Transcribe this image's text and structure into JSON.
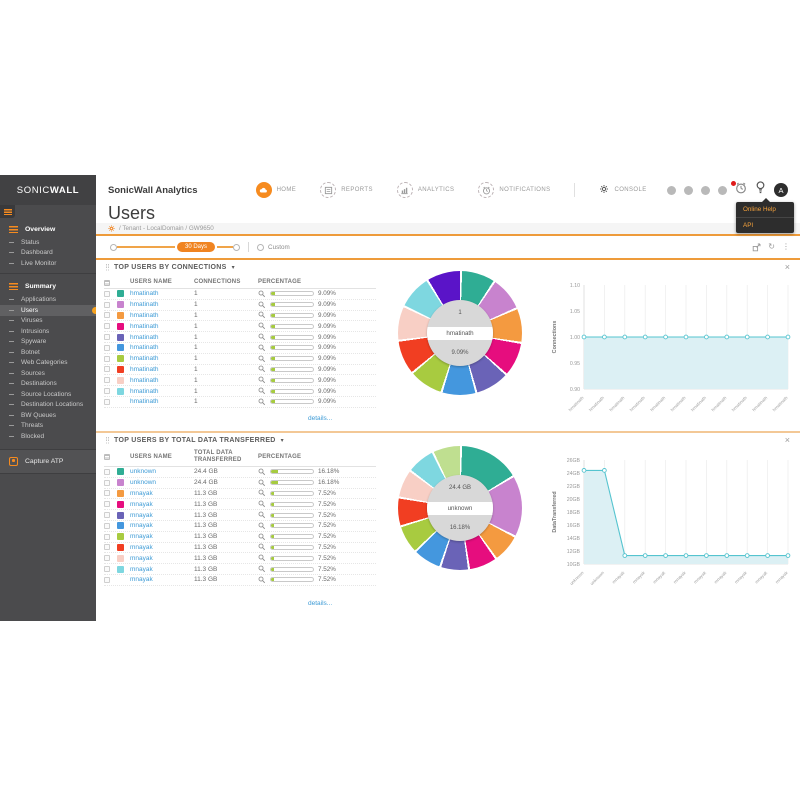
{
  "brand": {
    "logo_left": "SONIC",
    "logo_right": "WALL"
  },
  "topnav": {
    "app_title": "SonicWall Analytics",
    "items": [
      {
        "label": "HOME",
        "icon": "cloud-icon",
        "active": true
      },
      {
        "label": "REPORTS",
        "icon": "reports-icon",
        "active": false
      },
      {
        "label": "ANALYTICS",
        "icon": "analytics-icon",
        "active": false
      },
      {
        "label": "NOTIFICATIONS",
        "icon": "alarm-icon",
        "active": false
      },
      {
        "label": "CONSOLE",
        "icon": "gear-icon",
        "active": false,
        "no_circle": true
      }
    ],
    "avatar": "A",
    "help_menu": [
      "Online Help",
      "API"
    ]
  },
  "page": {
    "title": "Users",
    "breadcrumb": "/ Tenant - LocalDomain / GW9650"
  },
  "timebar": {
    "range": "30 Days",
    "custom": "Custom"
  },
  "sidebar": {
    "groups": [
      {
        "label": "Overview",
        "items": [
          "Status",
          "Dashboard",
          "Live Monitor"
        ]
      },
      {
        "label": "Summary",
        "items": [
          "Applications",
          "Users",
          "Viruses",
          "Intrusions",
          "Spyware",
          "Botnet",
          "Web Categories",
          "Sources",
          "Destinations",
          "Source Locations",
          "Destination Locations",
          "BW Queues",
          "Threats",
          "Blocked"
        ],
        "selected": "Users"
      }
    ],
    "footer_item": "Capture ATP"
  },
  "colors": {
    "accent": "#f68b1f",
    "rule": "#ee9b3a",
    "link": "#3e9bd6",
    "chart_line": "#55c4cf",
    "chart_fill": "#dcf0f4",
    "bar_fill": "#a6cb3f"
  },
  "sections": [
    {
      "title": "TOP USERS BY CONNECTIONS",
      "columns": [
        "USERS NAME",
        "CONNECTIONS",
        "PERCENTAGE"
      ],
      "details": "details...",
      "rows": [
        {
          "name": "hmatinath",
          "value": "1",
          "pct": "9.09%",
          "pctNum": 9.09,
          "color": "#2fad94"
        },
        {
          "name": "hmatinath",
          "value": "1",
          "pct": "9.09%",
          "pctNum": 9.09,
          "color": "#c883ce"
        },
        {
          "name": "hmatinath",
          "value": "1",
          "pct": "9.09%",
          "pctNum": 9.09,
          "color": "#f49a40"
        },
        {
          "name": "hmatinath",
          "value": "1",
          "pct": "9.09%",
          "pctNum": 9.09,
          "color": "#e60d7e"
        },
        {
          "name": "hmatinath",
          "value": "1",
          "pct": "9.09%",
          "pctNum": 9.09,
          "color": "#6a63b7"
        },
        {
          "name": "hmatinath",
          "value": "1",
          "pct": "9.09%",
          "pctNum": 9.09,
          "color": "#4497de"
        },
        {
          "name": "hmatinath",
          "value": "1",
          "pct": "9.09%",
          "pctNum": 9.09,
          "color": "#a8cb40"
        },
        {
          "name": "hmatinath",
          "value": "1",
          "pct": "9.09%",
          "pctNum": 9.09,
          "color": "#f13e22"
        },
        {
          "name": "hmatinath",
          "value": "1",
          "pct": "9.09%",
          "pctNum": 9.09,
          "color": "#f8cfc5"
        },
        {
          "name": "hmatinath",
          "value": "1",
          "pct": "9.09%",
          "pctNum": 9.09,
          "color": "#7ed7e0"
        },
        {
          "name": "hmatinath",
          "value": "1",
          "pct": "9.09%",
          "pctNum": 9.09,
          "color": null
        }
      ],
      "donut": {
        "center": {
          "value": "1",
          "name": "hmatinath",
          "pct": "9.09%"
        },
        "slices": [
          {
            "pct": 9.09,
            "color": "#2fad94"
          },
          {
            "pct": 9.09,
            "color": "#c883ce"
          },
          {
            "pct": 9.09,
            "color": "#f49a40"
          },
          {
            "pct": 9.09,
            "color": "#e60d7e"
          },
          {
            "pct": 9.09,
            "color": "#6a63b7"
          },
          {
            "pct": 9.09,
            "color": "#4497de"
          },
          {
            "pct": 9.09,
            "color": "#a8cb40"
          },
          {
            "pct": 9.09,
            "color": "#f13e22"
          },
          {
            "pct": 9.09,
            "color": "#f8cfc5"
          },
          {
            "pct": 9.09,
            "color": "#7ed7e0"
          },
          {
            "pct": 9.09,
            "color": "#5a14c8"
          }
        ]
      },
      "chart_data": {
        "type": "line",
        "ylabel": "Connections",
        "ymin": 0.9,
        "ymax": 1.1,
        "yticks": [
          {
            "v": 0.9,
            "label": "0.90"
          },
          {
            "v": 0.95,
            "label": "0.95"
          },
          {
            "v": 1.0,
            "label": "1.00"
          },
          {
            "v": 1.05,
            "label": "1.05"
          },
          {
            "v": 1.1,
            "label": "1.10"
          }
        ],
        "values": [
          1,
          1,
          1,
          1,
          1,
          1,
          1,
          1,
          1,
          1,
          1
        ],
        "xlabels": [
          "hmatinath",
          "hmatinath",
          "hmatinath",
          "hmatinath",
          "hmatinath",
          "hmatinath",
          "hmatinath",
          "hmatinath",
          "hmatinath",
          "hmatinath",
          "hmatinath"
        ]
      }
    },
    {
      "title": "TOP USERS BY TOTAL DATA TRANSFERRED",
      "columns": [
        "USERS NAME",
        "TOTAL DATA TRANSFERRED",
        "PERCENTAGE"
      ],
      "details": "details...",
      "rows": [
        {
          "name": "unknown",
          "value": "24.4 GB",
          "pct": "16.18%",
          "pctNum": 16.18,
          "color": "#2fad94"
        },
        {
          "name": "unknown",
          "value": "24.4 GB",
          "pct": "16.18%",
          "pctNum": 16.18,
          "color": "#c883ce"
        },
        {
          "name": "mnayak",
          "value": "11.3 GB",
          "pct": "7.52%",
          "pctNum": 7.52,
          "color": "#f49a40"
        },
        {
          "name": "mnayak",
          "value": "11.3 GB",
          "pct": "7.52%",
          "pctNum": 7.52,
          "color": "#e60d7e"
        },
        {
          "name": "mnayak",
          "value": "11.3 GB",
          "pct": "7.52%",
          "pctNum": 7.52,
          "color": "#6a63b7"
        },
        {
          "name": "mnayak",
          "value": "11.3 GB",
          "pct": "7.52%",
          "pctNum": 7.52,
          "color": "#4497de"
        },
        {
          "name": "mnayak",
          "value": "11.3 GB",
          "pct": "7.52%",
          "pctNum": 7.52,
          "color": "#a8cb40"
        },
        {
          "name": "mnayak",
          "value": "11.3 GB",
          "pct": "7.52%",
          "pctNum": 7.52,
          "color": "#f13e22"
        },
        {
          "name": "mnayak",
          "value": "11.3 GB",
          "pct": "7.52%",
          "pctNum": 7.52,
          "color": "#f8cfc5"
        },
        {
          "name": "mnayak",
          "value": "11.3 GB",
          "pct": "7.52%",
          "pctNum": 7.52,
          "color": "#7ed7e0"
        },
        {
          "name": "mnayak",
          "value": "11.3 GB",
          "pct": "7.52%",
          "pctNum": 7.52,
          "color": null
        }
      ],
      "donut": {
        "center": {
          "value": "24.4 GB",
          "name": "unknown",
          "pct": "16.18%"
        },
        "slices": [
          {
            "pct": 16.18,
            "color": "#2fad94"
          },
          {
            "pct": 16.18,
            "color": "#c883ce"
          },
          {
            "pct": 7.52,
            "color": "#f49a40"
          },
          {
            "pct": 7.52,
            "color": "#e60d7e"
          },
          {
            "pct": 7.52,
            "color": "#6a63b7"
          },
          {
            "pct": 7.52,
            "color": "#4497de"
          },
          {
            "pct": 7.52,
            "color": "#a8cb40"
          },
          {
            "pct": 7.52,
            "color": "#f13e22"
          },
          {
            "pct": 7.52,
            "color": "#f8cfc5"
          },
          {
            "pct": 7.52,
            "color": "#7ed7e0"
          },
          {
            "pct": 7.52,
            "color": "#bfdf90"
          }
        ]
      },
      "chart_data": {
        "type": "line",
        "ylabel": "DataTransferred",
        "ymin": 10,
        "ymax": 26,
        "yticks": [
          {
            "v": 10,
            "label": "10GB"
          },
          {
            "v": 12,
            "label": "12GB"
          },
          {
            "v": 14,
            "label": "14GB"
          },
          {
            "v": 16,
            "label": "16GB"
          },
          {
            "v": 18,
            "label": "18GB"
          },
          {
            "v": 20,
            "label": "20GB"
          },
          {
            "v": 22,
            "label": "22GB"
          },
          {
            "v": 24,
            "label": "24GB"
          },
          {
            "v": 26,
            "label": "26GB"
          }
        ],
        "values": [
          24.4,
          24.4,
          11.3,
          11.3,
          11.3,
          11.3,
          11.3,
          11.3,
          11.3,
          11.3,
          11.3
        ],
        "xlabels": [
          "unknown",
          "unknown",
          "mnayak",
          "mnayak",
          "mnayak",
          "mnayak",
          "mnayak",
          "mnayak",
          "mnayak",
          "mnayak",
          "mnayak"
        ]
      }
    }
  ]
}
